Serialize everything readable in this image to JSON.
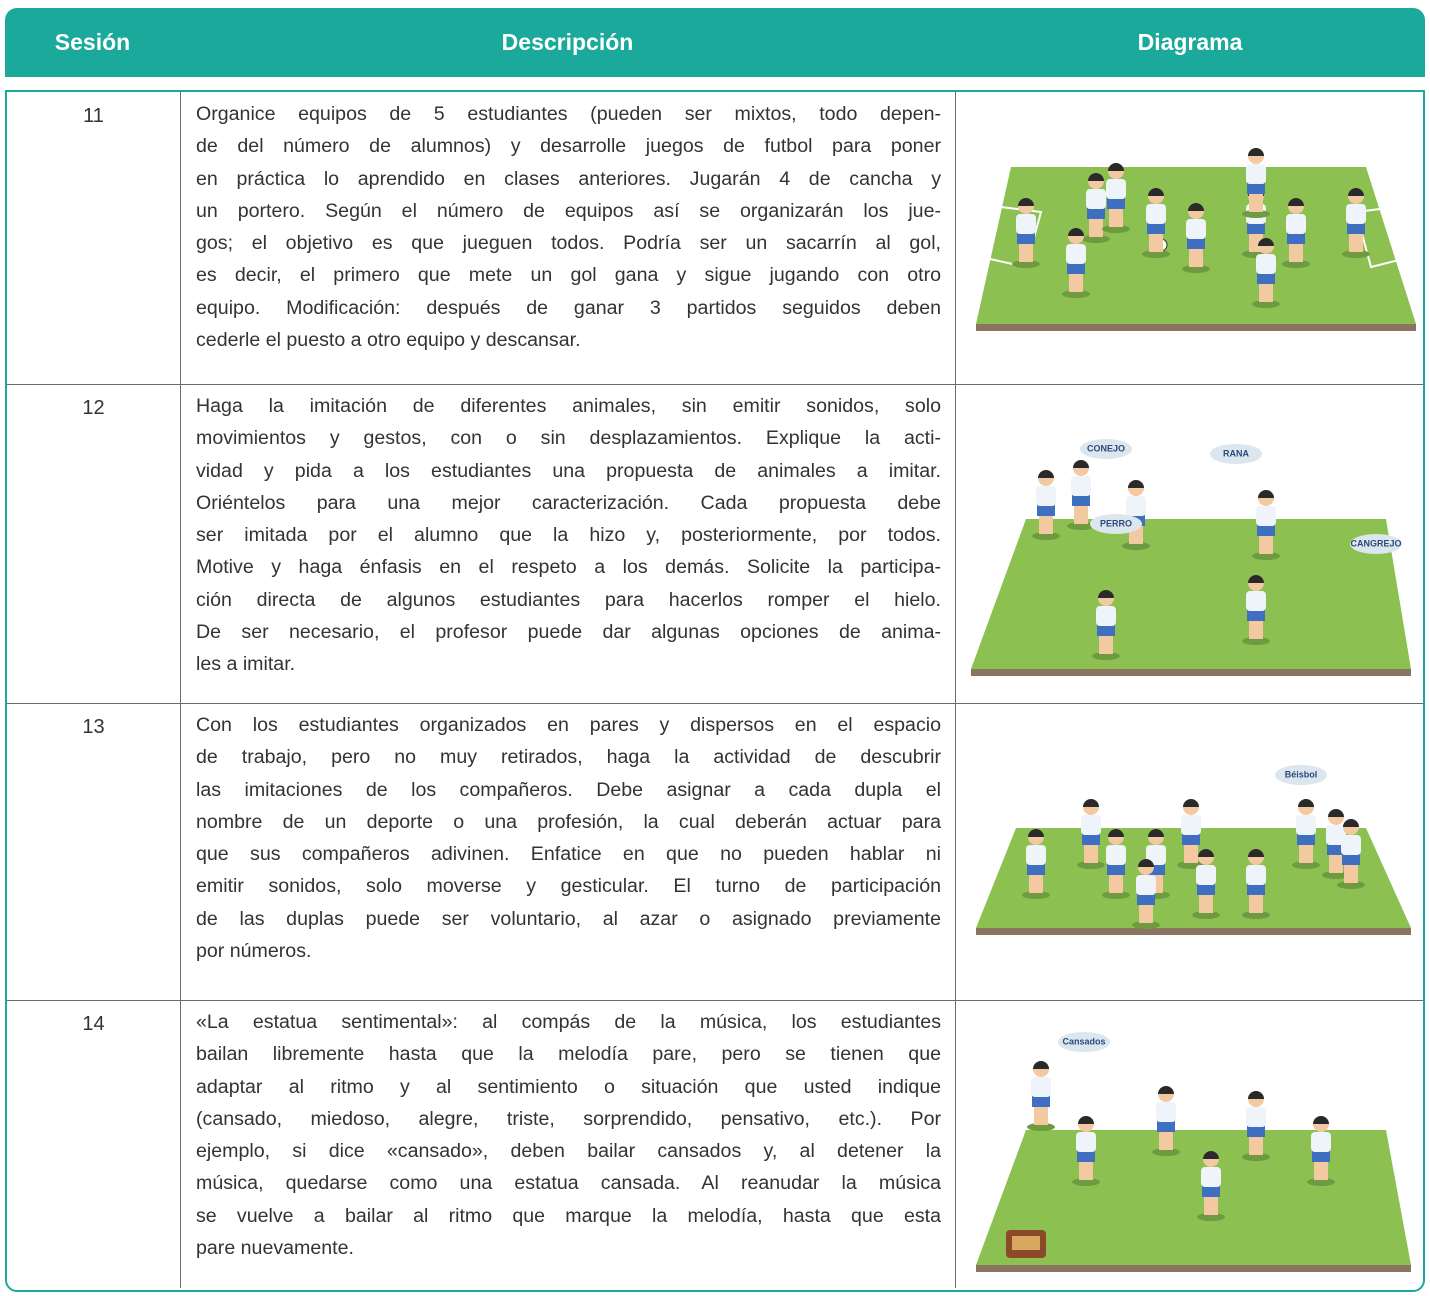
{
  "table": {
    "headers": [
      "Sesión",
      "Descripción",
      "Diagrama"
    ],
    "rows": [
      {
        "session": "11",
        "description": [
          "Organice equipos de 5 estudiantes (pueden ser mixtos, todo depen-",
          "de del número de alumnos) y desarrolle juegos de futbol para poner",
          "en práctica lo aprendido en clases anteriores. Jugarán 4 de cancha y",
          "un portero. Según el número de equipos así se organizarán los jue-",
          "gos; el objetivo es que jueguen todos. Podría ser un sacarrín al gol,",
          "es decir, el primero que mete un gol gana y sigue jugando con otro",
          "equipo. Modificación: después de ganar 3 partidos seguidos deben",
          "cederle el puesto a otro equipo y descansar."
        ]
      },
      {
        "session": "12",
        "description": [
          "Haga la imitación de diferentes animales, sin emitir sonidos, solo",
          "movimientos y gestos, con o sin desplazamientos. Explique la acti-",
          "vidad y pida a los estudiantes una propuesta de animales a imitar.",
          "Oriéntelos para una mejor caracterización. Cada propuesta debe",
          "ser imitada por el alumno que la hizo y, posteriormente, por todos.",
          "Motive y haga énfasis en el respeto a los demás. Solicite la participa-",
          "ción directa de algunos estudiantes para hacerlos romper el hielo.",
          "De ser necesario, el profesor puede dar algunas opciones de anima-",
          "les a imitar."
        ],
        "diagram_labels": [
          "CONEJO",
          "RANA",
          "PERRO",
          "CANGREJO"
        ]
      },
      {
        "session": "13",
        "description": [
          "Con los estudiantes organizados en pares y dispersos en el espacio",
          "de trabajo, pero no muy retirados, haga la actividad de descubrir",
          "las imitaciones de los compañeros. Debe asignar a cada dupla el",
          "nombre de un deporte o una profesión, la cual deberán actuar para",
          "que sus compañeros adivinen. Enfatice en que no pueden hablar ni",
          "emitir sonidos, solo moverse y gesticular. El turno de participación",
          "de las duplas puede ser voluntario, al azar o asignado previamente",
          "por números."
        ],
        "diagram_labels": [
          "Béisbol"
        ]
      },
      {
        "session": "14",
        "description": [
          "«La estatua sentimental»: al compás de la música, los estudiantes",
          "bailan libremente hasta que la melodía pare, pero se tienen que",
          "adaptar al ritmo y al sentimiento o situación que usted indique",
          "(cansado, miedoso, alegre, triste, sorprendido, pensativo, etc.). Por",
          "ejemplo, si dice «cansado», deben bailar cansados y, al detener la",
          "música, quedarse como una estatua cansada. Al reanudar la música",
          "se vuelve a bailar al ritmo que marque la melodía, hasta que esta",
          "pare nuevamente."
        ],
        "diagram_labels": [
          "Cansados"
        ]
      }
    ]
  }
}
